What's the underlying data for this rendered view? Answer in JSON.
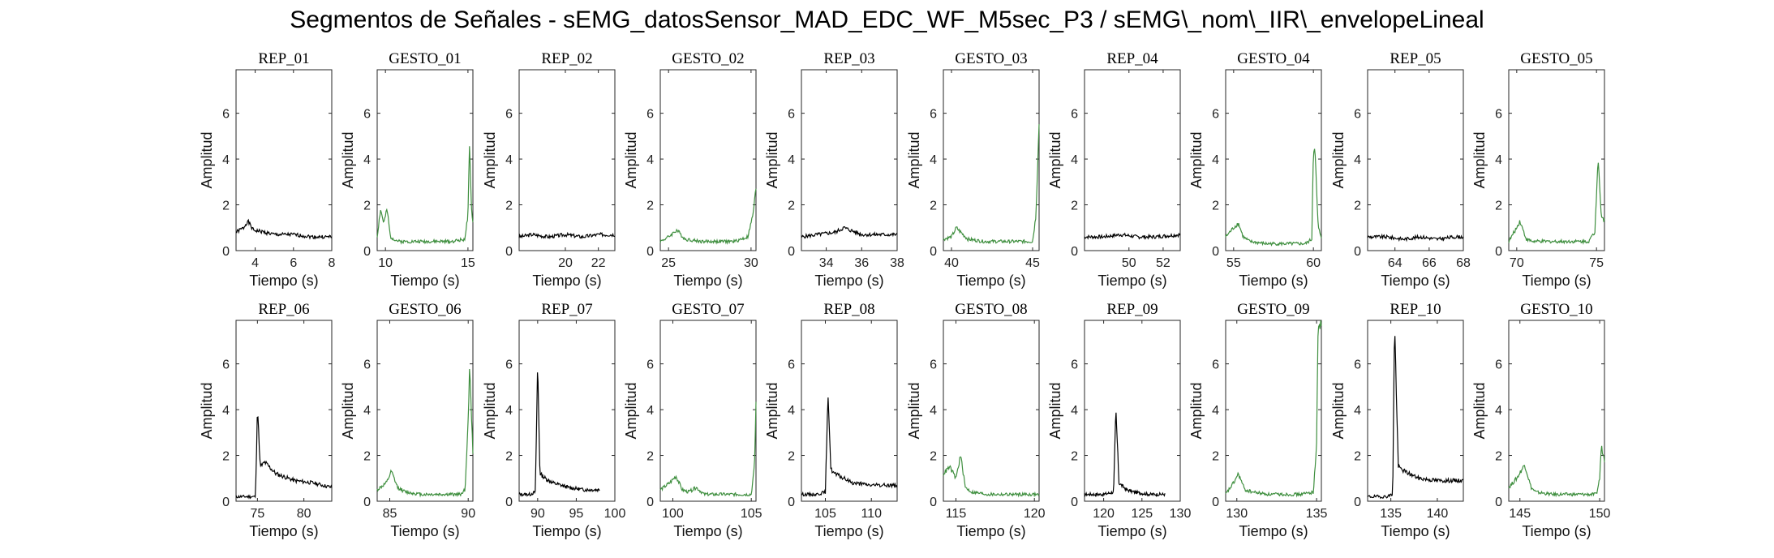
{
  "title": "Segmentos de Señales - sEMG_datosSensor_MAD_EDC_WF_M5sec_P3 / sEMG\\_nom\\_IIR\\_envelopeLineal",
  "colors": {
    "rep": "#000000",
    "gesto": "#3f8f3f",
    "axis": "#262626"
  },
  "chart_data": [
    {
      "type": "line",
      "title": "REP_01",
      "xlabel": "Tiempo (s)",
      "ylabel": "Amplitud",
      "xlim": [
        3,
        8
      ],
      "ylim": [
        0,
        7.9
      ],
      "xticks": [
        4,
        6,
        8
      ],
      "yticks": [
        0,
        2,
        4,
        6
      ],
      "kind": "rep",
      "seed": 1,
      "x": [
        3,
        3.4,
        3.6,
        3.9,
        4.5,
        5,
        6,
        7,
        8
      ],
      "y": [
        0.8,
        1.0,
        1.3,
        0.9,
        0.8,
        0.7,
        0.7,
        0.6,
        0.6
      ]
    },
    {
      "type": "line",
      "title": "GESTO_01",
      "xlabel": "Tiempo (s)",
      "ylabel": "Amplitud",
      "xlim": [
        9.5,
        15.3
      ],
      "ylim": [
        0,
        7.9
      ],
      "xticks": [
        10,
        15
      ],
      "yticks": [
        0,
        2,
        4,
        6
      ],
      "kind": "gesto",
      "seed": 2,
      "x": [
        9.5,
        9.7,
        9.9,
        10.1,
        10.3,
        10.8,
        12,
        14,
        14.8,
        15.0,
        15.1,
        15.2,
        15.3
      ],
      "y": [
        0.6,
        1.8,
        1.2,
        1.8,
        0.6,
        0.4,
        0.4,
        0.4,
        0.5,
        1.5,
        4.6,
        2.0,
        1.2
      ]
    },
    {
      "type": "line",
      "title": "REP_02",
      "xlabel": "Tiempo (s)",
      "ylabel": "Amplitud",
      "xlim": [
        17.2,
        23
      ],
      "ylim": [
        0,
        7.9
      ],
      "xticks": [
        20,
        22
      ],
      "yticks": [
        0,
        2,
        4,
        6
      ],
      "kind": "rep",
      "seed": 3,
      "x": [
        17.2,
        18,
        19,
        20,
        21,
        22,
        23
      ],
      "y": [
        0.6,
        0.7,
        0.6,
        0.7,
        0.6,
        0.7,
        0.7
      ]
    },
    {
      "type": "line",
      "title": "GESTO_02",
      "xlabel": "Tiempo (s)",
      "ylabel": "Amplitud",
      "xlim": [
        24.5,
        30.3
      ],
      "ylim": [
        0,
        7.9
      ],
      "xticks": [
        25,
        30
      ],
      "yticks": [
        0,
        2,
        4,
        6
      ],
      "kind": "gesto",
      "seed": 4,
      "x": [
        24.5,
        25,
        25.5,
        26,
        27,
        28,
        29,
        29.8,
        30.1,
        30.3
      ],
      "y": [
        0.4,
        0.6,
        0.9,
        0.5,
        0.4,
        0.4,
        0.4,
        0.6,
        1.5,
        2.7
      ]
    },
    {
      "type": "line",
      "title": "REP_03",
      "xlabel": "Tiempo (s)",
      "ylabel": "Amplitud",
      "xlim": [
        32.6,
        38
      ],
      "ylim": [
        0,
        7.9
      ],
      "xticks": [
        34,
        36,
        38
      ],
      "yticks": [
        0,
        2,
        4,
        6
      ],
      "kind": "rep",
      "seed": 5,
      "x": [
        32.6,
        33.5,
        34.5,
        35,
        36,
        37,
        38
      ],
      "y": [
        0.6,
        0.7,
        0.8,
        1.0,
        0.7,
        0.7,
        0.7
      ]
    },
    {
      "type": "line",
      "title": "GESTO_03",
      "xlabel": "Tiempo (s)",
      "ylabel": "Amplitud",
      "xlim": [
        39.5,
        45.4
      ],
      "ylim": [
        0,
        7.9
      ],
      "xticks": [
        40,
        45
      ],
      "yticks": [
        0,
        2,
        4,
        6
      ],
      "kind": "gesto",
      "seed": 6,
      "x": [
        39.5,
        40,
        40.3,
        41,
        42,
        43,
        44,
        45,
        45.2,
        45.4
      ],
      "y": [
        0.5,
        0.6,
        1.0,
        0.5,
        0.4,
        0.4,
        0.4,
        0.4,
        1.5,
        5.6
      ]
    },
    {
      "type": "line",
      "title": "REP_04",
      "xlabel": "Tiempo (s)",
      "ylabel": "Amplitud",
      "xlim": [
        47.4,
        53
      ],
      "ylim": [
        0,
        7.9
      ],
      "xticks": [
        50,
        52
      ],
      "yticks": [
        0,
        2,
        4,
        6
      ],
      "kind": "rep",
      "seed": 7,
      "x": [
        47.4,
        48.5,
        49.5,
        50.5,
        51.5,
        53
      ],
      "y": [
        0.6,
        0.6,
        0.7,
        0.6,
        0.6,
        0.7
      ]
    },
    {
      "type": "line",
      "title": "GESTO_04",
      "xlabel": "Tiempo (s)",
      "ylabel": "Amplitud",
      "xlim": [
        54.5,
        60.5
      ],
      "ylim": [
        0,
        7.9
      ],
      "xticks": [
        55,
        60
      ],
      "yticks": [
        0,
        2,
        4,
        6
      ],
      "kind": "gesto",
      "seed": 8,
      "x": [
        54.5,
        55,
        55.3,
        55.6,
        56,
        57,
        58,
        59.5,
        59.9,
        60.0,
        60.1,
        60.3,
        60.5
      ],
      "y": [
        0.6,
        1.0,
        1.2,
        0.6,
        0.4,
        0.3,
        0.3,
        0.3,
        0.5,
        4.5,
        4.3,
        1.0,
        0.6
      ]
    },
    {
      "type": "line",
      "title": "REP_05",
      "xlabel": "Tiempo (s)",
      "ylabel": "Amplitud",
      "xlim": [
        62.4,
        68
      ],
      "ylim": [
        0,
        7.9
      ],
      "xticks": [
        64,
        66,
        68
      ],
      "yticks": [
        0,
        2,
        4,
        6
      ],
      "kind": "rep",
      "seed": 9,
      "x": [
        62.4,
        63.5,
        64.5,
        65.5,
        66.5,
        67.5,
        68
      ],
      "y": [
        0.6,
        0.6,
        0.5,
        0.6,
        0.5,
        0.6,
        0.6
      ]
    },
    {
      "type": "line",
      "title": "GESTO_05",
      "xlabel": "Tiempo (s)",
      "ylabel": "Amplitud",
      "xlim": [
        69.5,
        75.5
      ],
      "ylim": [
        0,
        7.9
      ],
      "xticks": [
        70,
        75
      ],
      "yticks": [
        0,
        2,
        4,
        6
      ],
      "kind": "gesto",
      "seed": 10,
      "x": [
        69.5,
        70,
        70.2,
        70.6,
        71,
        72,
        73,
        74.5,
        74.9,
        75.1,
        75.3,
        75.5
      ],
      "y": [
        0.4,
        1.0,
        1.3,
        0.5,
        0.4,
        0.4,
        0.4,
        0.4,
        0.8,
        4.2,
        1.5,
        1.3
      ]
    },
    {
      "type": "line",
      "title": "REP_06",
      "xlabel": "Tiempo (s)",
      "ylabel": "Amplitud",
      "xlim": [
        72.7,
        83
      ],
      "ylim": [
        0,
        7.9
      ],
      "xticks": [
        75,
        80
      ],
      "yticks": [
        0,
        2,
        4,
        6
      ],
      "kind": "rep",
      "seed": 11,
      "x": [
        72.7,
        74,
        74.8,
        75.0,
        75.3,
        75.8,
        77,
        79,
        81,
        83
      ],
      "y": [
        0.2,
        0.2,
        0.2,
        4.2,
        1.5,
        1.7,
        1.2,
        0.9,
        0.8,
        0.6
      ]
    },
    {
      "type": "line",
      "title": "GESTO_06",
      "xlabel": "Tiempo (s)",
      "ylabel": "Amplitud",
      "xlim": [
        84.2,
        90.3
      ],
      "ylim": [
        0,
        7.9
      ],
      "xticks": [
        85,
        90
      ],
      "yticks": [
        0,
        2,
        4,
        6
      ],
      "kind": "gesto",
      "seed": 12,
      "x": [
        84.2,
        84.8,
        85.1,
        85.5,
        86,
        87,
        88,
        89.5,
        89.8,
        90.0,
        90.1,
        90.3
      ],
      "y": [
        0.5,
        0.8,
        1.3,
        0.6,
        0.4,
        0.3,
        0.3,
        0.3,
        0.5,
        3.5,
        6.0,
        2.0
      ]
    },
    {
      "type": "line",
      "title": "REP_07",
      "xlabel": "Tiempo (s)",
      "ylabel": "Amplitud",
      "xlim": [
        87.6,
        100
      ],
      "ylim": [
        0,
        7.9
      ],
      "xticks": [
        90,
        95,
        100
      ],
      "yticks": [
        0,
        2,
        4,
        6
      ],
      "kind": "rep",
      "seed": 13,
      "x": [
        87.6,
        89,
        89.7,
        90.0,
        90.3,
        91,
        92,
        94,
        96,
        98
      ],
      "y": [
        0.3,
        0.3,
        0.4,
        6.0,
        1.2,
        1.0,
        0.8,
        0.6,
        0.5,
        0.5
      ]
    },
    {
      "type": "line",
      "title": "GESTO_07",
      "xlabel": "Tiempo (s)",
      "ylabel": "Amplitud",
      "xlim": [
        99.2,
        105.3
      ],
      "ylim": [
        0,
        7.9
      ],
      "xticks": [
        100,
        105
      ],
      "yticks": [
        0,
        2,
        4,
        6
      ],
      "kind": "gesto",
      "seed": 14,
      "x": [
        99.2,
        99.8,
        100.2,
        100.6,
        101,
        101.5,
        102,
        103,
        104,
        105,
        105.2,
        105.3
      ],
      "y": [
        0.5,
        0.8,
        1.1,
        0.5,
        0.4,
        0.6,
        0.3,
        0.3,
        0.3,
        0.3,
        1.5,
        4.3
      ]
    },
    {
      "type": "line",
      "title": "REP_08",
      "xlabel": "Tiempo (s)",
      "ylabel": "Amplitud",
      "xlim": [
        102.4,
        112.8
      ],
      "ylim": [
        0,
        7.9
      ],
      "xticks": [
        105,
        110
      ],
      "yticks": [
        0,
        2,
        4,
        6
      ],
      "kind": "rep",
      "seed": 15,
      "x": [
        102.4,
        104,
        105.0,
        105.3,
        105.6,
        106,
        107,
        108,
        110,
        112.8
      ],
      "y": [
        0.3,
        0.3,
        0.4,
        4.7,
        1.4,
        1.2,
        1.0,
        0.8,
        0.7,
        0.7
      ]
    },
    {
      "type": "line",
      "title": "GESTO_08",
      "xlabel": "Tiempo (s)",
      "ylabel": "Amplitud",
      "xlim": [
        114.2,
        120.3
      ],
      "ylim": [
        0,
        7.9
      ],
      "xticks": [
        115,
        120
      ],
      "yticks": [
        0,
        2,
        4,
        6
      ],
      "kind": "gesto",
      "seed": 16,
      "x": [
        114.2,
        114.6,
        115,
        115.3,
        115.6,
        116,
        117,
        118,
        119,
        120,
        120.3
      ],
      "y": [
        1.2,
        1.5,
        1.0,
        2.0,
        0.6,
        0.4,
        0.3,
        0.3,
        0.3,
        0.3,
        0.3
      ]
    },
    {
      "type": "line",
      "title": "REP_09",
      "xlabel": "Tiempo (s)",
      "ylabel": "Amplitud",
      "xlim": [
        117.5,
        130
      ],
      "ylim": [
        0,
        7.9
      ],
      "xticks": [
        120,
        125,
        130
      ],
      "yticks": [
        0,
        2,
        4,
        6
      ],
      "kind": "rep",
      "seed": 17,
      "x": [
        117.5,
        120,
        121.3,
        121.6,
        122,
        123,
        124,
        126,
        128
      ],
      "y": [
        0.3,
        0.3,
        0.4,
        4.0,
        0.8,
        0.5,
        0.4,
        0.3,
        0.3
      ]
    },
    {
      "type": "line",
      "title": "GESTO_09",
      "xlabel": "Tiempo (s)",
      "ylabel": "Amplitud",
      "xlim": [
        129.3,
        135.3
      ],
      "ylim": [
        0,
        7.9
      ],
      "xticks": [
        130,
        135
      ],
      "yticks": [
        0,
        2,
        4,
        6
      ],
      "kind": "gesto",
      "seed": 18,
      "x": [
        129.3,
        129.8,
        130.1,
        130.5,
        131,
        132,
        133,
        134,
        134.8,
        135.0,
        135.1,
        135.3
      ],
      "y": [
        0.3,
        0.8,
        1.2,
        0.5,
        0.4,
        0.3,
        0.3,
        0.3,
        0.4,
        2.5,
        7.8,
        7.8
      ]
    },
    {
      "type": "line",
      "title": "REP_10",
      "xlabel": "Tiempo (s)",
      "ylabel": "Amplitud",
      "xlim": [
        132.5,
        142.8
      ],
      "ylim": [
        0,
        7.9
      ],
      "xticks": [
        135,
        140
      ],
      "yticks": [
        0,
        2,
        4,
        6
      ],
      "kind": "rep",
      "seed": 19,
      "x": [
        132.5,
        134.5,
        135.2,
        135.4,
        135.8,
        136.5,
        138,
        140,
        142.8
      ],
      "y": [
        0.2,
        0.2,
        0.3,
        7.8,
        1.5,
        1.3,
        1.0,
        0.9,
        0.9
      ]
    },
    {
      "type": "line",
      "title": "GESTO_10",
      "xlabel": "Tiempo (s)",
      "ylabel": "Amplitud",
      "xlim": [
        144.3,
        150.3
      ],
      "ylim": [
        0,
        7.9
      ],
      "xticks": [
        145,
        150
      ],
      "yticks": [
        0,
        2,
        4,
        6
      ],
      "kind": "gesto",
      "seed": 20,
      "x": [
        144.3,
        144.8,
        145.3,
        145.7,
        146,
        147,
        148,
        149,
        149.8,
        150.0,
        150.1,
        150.3
      ],
      "y": [
        0.6,
        1.0,
        1.6,
        0.6,
        0.4,
        0.3,
        0.3,
        0.3,
        0.3,
        1.0,
        2.4,
        1.8
      ]
    }
  ]
}
